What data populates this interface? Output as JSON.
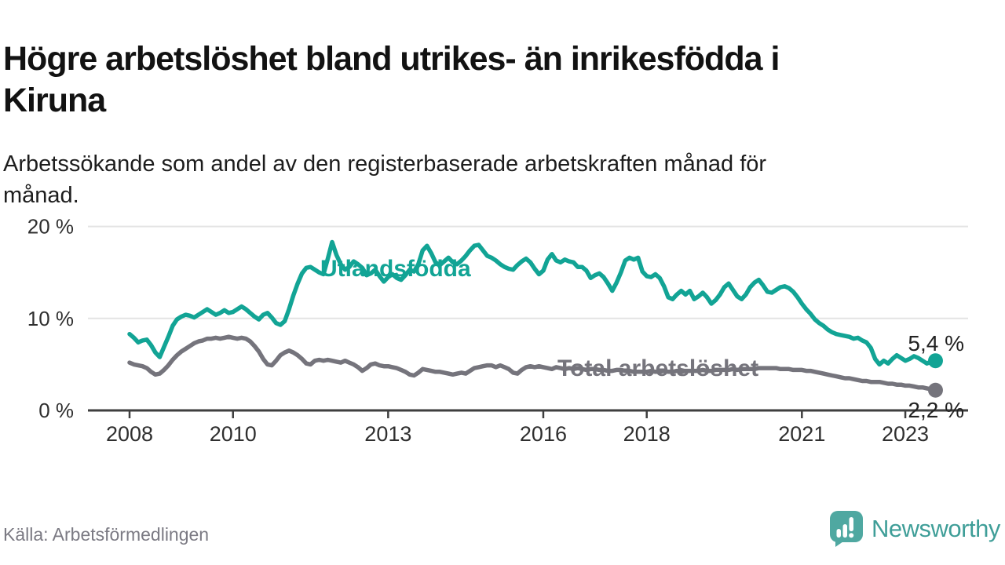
{
  "header": {
    "title": "Högre arbetslöshet bland utrikes- än inrikesfödda i Kiruna",
    "title_lines": [
      "Högre arbetslöshet bland utrikes- än inrikesfödda i",
      "Kiruna"
    ],
    "subtitle": "Arbetssökande som andel av den registerbaserade arbetskraften månad för månad.",
    "subtitle_lines": [
      "Arbetssökande som andel av den registerbaserade arbetskraften månad för",
      "månad."
    ]
  },
  "footer": {
    "source": "Källa: Arbetsförmedlingen",
    "brand": "Newsworthy"
  },
  "colors": {
    "foreign_line": "#12a495",
    "total_line": "#75747c",
    "grid": "#e4e4e4",
    "axis": "#3f3f3f",
    "tick_text": "#2f2f2f",
    "end_label_text": "#222222",
    "muted_text": "#7b7a83",
    "brand_icon": "#4fa8a1",
    "brand_text": "#3f9e98"
  },
  "chart_data": {
    "type": "line",
    "unit": "%",
    "x_start_year": 2008,
    "x_points_per_year": 12,
    "ylim": [
      0,
      21
    ],
    "grid": "horizontal",
    "legend_position": "inline-labels",
    "y_ticks": [
      {
        "value": 20,
        "label": "20 %"
      },
      {
        "value": 10,
        "label": "10 %"
      },
      {
        "value": 0,
        "label": "0 %"
      }
    ],
    "x_ticks": [
      {
        "value": 2008,
        "label": "2008"
      },
      {
        "value": 2010,
        "label": "2010"
      },
      {
        "value": 2013,
        "label": "2013"
      },
      {
        "value": 2016,
        "label": "2016"
      },
      {
        "value": 2018,
        "label": "2018"
      },
      {
        "value": 2021,
        "label": "2021"
      },
      {
        "value": 2023,
        "label": "2023"
      }
    ],
    "series": [
      {
        "name": "Utlandsfödda",
        "color": "#12a495",
        "end_value_label": "5,4 %",
        "values": [
          8.3,
          7.9,
          7.4,
          7.6,
          7.7,
          7.1,
          6.3,
          5.8,
          6.9,
          8.0,
          9.2,
          9.9,
          10.2,
          10.4,
          10.3,
          10.1,
          10.4,
          10.7,
          11.0,
          10.7,
          10.4,
          10.6,
          10.9,
          10.6,
          10.7,
          11.0,
          11.3,
          11.0,
          10.6,
          10.2,
          9.9,
          10.4,
          10.6,
          10.1,
          9.5,
          9.3,
          9.7,
          11.0,
          12.5,
          13.8,
          14.9,
          15.5,
          15.6,
          15.3,
          15.0,
          14.8,
          16.5,
          18.3,
          16.9,
          15.9,
          15.3,
          15.6,
          16.2,
          15.9,
          15.5,
          14.7,
          14.9,
          15.3,
          14.6,
          14.0,
          14.5,
          14.8,
          14.4,
          14.2,
          14.7,
          15.3,
          15.1,
          15.9,
          17.4,
          17.9,
          17.1,
          16.1,
          15.8,
          16.2,
          16.6,
          16.1,
          15.9,
          16.3,
          16.8,
          17.4,
          17.9,
          18.0,
          17.4,
          16.8,
          16.6,
          16.3,
          15.9,
          15.6,
          15.4,
          15.3,
          15.8,
          16.2,
          16.5,
          16.1,
          15.4,
          14.8,
          15.2,
          16.4,
          17.0,
          16.3,
          16.1,
          16.4,
          16.2,
          16.1,
          15.6,
          15.6,
          15.2,
          14.4,
          14.7,
          14.9,
          14.5,
          13.8,
          13.0,
          13.9,
          15.0,
          16.3,
          16.6,
          16.4,
          16.6,
          15.1,
          14.6,
          14.5,
          14.8,
          14.4,
          13.5,
          12.3,
          12.1,
          12.6,
          13.0,
          12.6,
          13.0,
          12.1,
          12.4,
          12.8,
          12.3,
          11.6,
          12.0,
          12.6,
          13.4,
          13.8,
          13.1,
          12.4,
          12.1,
          12.6,
          13.4,
          13.9,
          14.2,
          13.6,
          12.9,
          12.8,
          13.1,
          13.4,
          13.5,
          13.3,
          12.9,
          12.3,
          11.6,
          11.0,
          10.5,
          9.9,
          9.5,
          9.2,
          8.8,
          8.5,
          8.3,
          8.2,
          8.1,
          8.0,
          7.8,
          7.9,
          7.6,
          7.4,
          6.8,
          5.6,
          5.0,
          5.4,
          5.1,
          5.6,
          6.0,
          5.7,
          5.4,
          5.6,
          5.9,
          5.7,
          5.4,
          5.1,
          5.3,
          5.4
        ]
      },
      {
        "name": "Total arbetslöshet",
        "color": "#75747c",
        "end_value_label": "2,2 %",
        "values": [
          5.2,
          5.0,
          4.9,
          4.8,
          4.6,
          4.2,
          3.9,
          4.0,
          4.4,
          4.9,
          5.5,
          6.0,
          6.4,
          6.7,
          7.0,
          7.3,
          7.5,
          7.6,
          7.8,
          7.8,
          7.9,
          7.8,
          7.9,
          8.0,
          7.9,
          7.8,
          7.9,
          7.8,
          7.5,
          7.0,
          6.4,
          5.6,
          5.0,
          4.9,
          5.4,
          6.0,
          6.3,
          6.5,
          6.3,
          6.0,
          5.6,
          5.1,
          5.0,
          5.4,
          5.5,
          5.4,
          5.5,
          5.4,
          5.3,
          5.2,
          5.4,
          5.2,
          5.0,
          4.7,
          4.3,
          4.6,
          5.0,
          5.1,
          4.9,
          4.8,
          4.8,
          4.7,
          4.6,
          4.4,
          4.2,
          3.9,
          3.8,
          4.1,
          4.5,
          4.4,
          4.3,
          4.2,
          4.2,
          4.1,
          4.0,
          3.9,
          4.0,
          4.1,
          4.0,
          4.3,
          4.6,
          4.7,
          4.8,
          4.9,
          4.9,
          4.7,
          4.9,
          4.7,
          4.5,
          4.1,
          4.0,
          4.4,
          4.7,
          4.8,
          4.7,
          4.8,
          4.7,
          4.6,
          4.5,
          4.7,
          4.6,
          4.5,
          4.6,
          4.5,
          4.6,
          4.5,
          4.4,
          4.5,
          4.5,
          4.4,
          4.4,
          4.3,
          4.3,
          4.4,
          4.4,
          4.3,
          4.3,
          4.2,
          4.2,
          4.2,
          4.2,
          4.3,
          4.2,
          4.2,
          4.3,
          4.2,
          4.2,
          4.3,
          4.2,
          4.3,
          4.3,
          4.3,
          4.3,
          4.4,
          4.3,
          4.3,
          4.4,
          4.4,
          4.4,
          4.4,
          4.5,
          4.4,
          4.5,
          4.5,
          4.5,
          4.5,
          4.6,
          4.6,
          4.6,
          4.6,
          4.6,
          4.5,
          4.5,
          4.5,
          4.4,
          4.4,
          4.4,
          4.3,
          4.3,
          4.2,
          4.1,
          4.0,
          3.9,
          3.8,
          3.7,
          3.6,
          3.5,
          3.5,
          3.4,
          3.3,
          3.2,
          3.2,
          3.1,
          3.1,
          3.1,
          3.0,
          2.9,
          2.9,
          2.8,
          2.8,
          2.7,
          2.7,
          2.6,
          2.5,
          2.5,
          2.4,
          2.3,
          2.2
        ]
      }
    ]
  }
}
